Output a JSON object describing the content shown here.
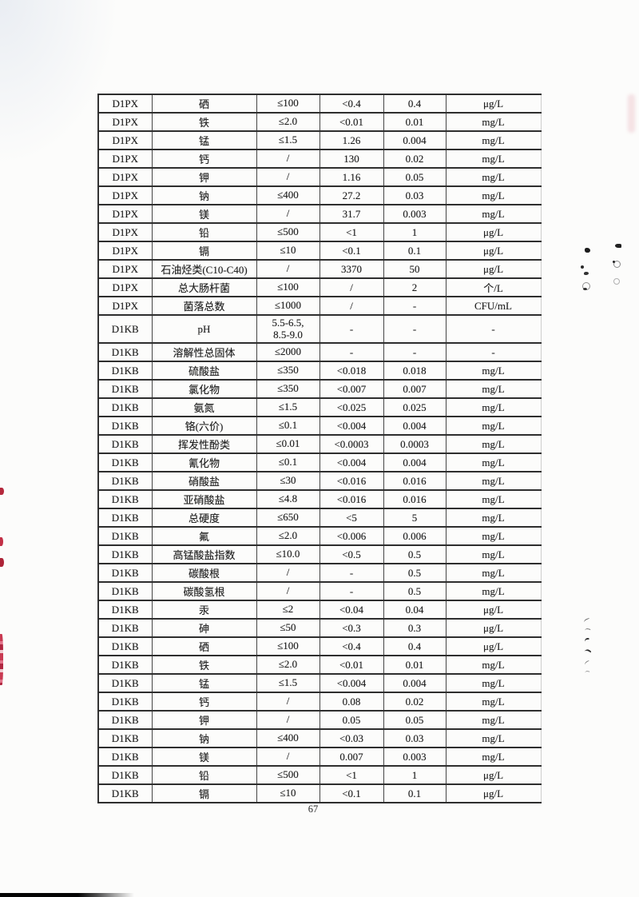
{
  "page": {
    "number": "67"
  },
  "colors": {
    "stamp_red": "#b5293d",
    "ink": "#1f1f1f",
    "line": "#2e2e2e"
  },
  "table": {
    "columns": [
      "sample_id",
      "parameter",
      "limit",
      "measured",
      "detection_limit",
      "unit"
    ],
    "rows": [
      {
        "sample_id": "D1PX",
        "parameter": "硒",
        "limit": "≤100",
        "measured": "<0.4",
        "detection_limit": "0.4",
        "unit": "μg/L"
      },
      {
        "sample_id": "D1PX",
        "parameter": "铁",
        "limit": "≤2.0",
        "measured": "<0.01",
        "detection_limit": "0.01",
        "unit": "mg/L"
      },
      {
        "sample_id": "D1PX",
        "parameter": "锰",
        "limit": "≤1.5",
        "measured": "1.26",
        "detection_limit": "0.004",
        "unit": "mg/L"
      },
      {
        "sample_id": "D1PX",
        "parameter": "钙",
        "limit": "/",
        "measured": "130",
        "detection_limit": "0.02",
        "unit": "mg/L"
      },
      {
        "sample_id": "D1PX",
        "parameter": "钾",
        "limit": "/",
        "measured": "1.16",
        "detection_limit": "0.05",
        "unit": "mg/L"
      },
      {
        "sample_id": "D1PX",
        "parameter": "钠",
        "limit": "≤400",
        "measured": "27.2",
        "detection_limit": "0.03",
        "unit": "mg/L"
      },
      {
        "sample_id": "D1PX",
        "parameter": "镁",
        "limit": "/",
        "measured": "31.7",
        "detection_limit": "0.003",
        "unit": "mg/L"
      },
      {
        "sample_id": "D1PX",
        "parameter": "铅",
        "limit": "≤500",
        "measured": "<1",
        "detection_limit": "1",
        "unit": "μg/L"
      },
      {
        "sample_id": "D1PX",
        "parameter": "镉",
        "limit": "≤10",
        "measured": "<0.1",
        "detection_limit": "0.1",
        "unit": "μg/L"
      },
      {
        "sample_id": "D1PX",
        "parameter": "石油烃类(C10-C40)",
        "limit": "/",
        "measured": "3370",
        "detection_limit": "50",
        "unit": "μg/L"
      },
      {
        "sample_id": "D1PX",
        "parameter": "总大肠杆菌",
        "limit": "≤100",
        "measured": "/",
        "detection_limit": "2",
        "unit": "个/L"
      },
      {
        "sample_id": "D1PX",
        "parameter": "菌落总数",
        "limit": "≤1000",
        "measured": "/",
        "detection_limit": "-",
        "unit": "CFU/mL"
      },
      {
        "sample_id": "D1KB",
        "parameter": "pH",
        "limit": "5.5-6.5,\n8.5-9.0",
        "measured": "-",
        "detection_limit": "-",
        "unit": "-"
      },
      {
        "sample_id": "D1KB",
        "parameter": "溶解性总固体",
        "limit": "≤2000",
        "measured": "-",
        "detection_limit": "-",
        "unit": "-"
      },
      {
        "sample_id": "D1KB",
        "parameter": "硫酸盐",
        "limit": "≤350",
        "measured": "<0.018",
        "detection_limit": "0.018",
        "unit": "mg/L"
      },
      {
        "sample_id": "D1KB",
        "parameter": "氯化物",
        "limit": "≤350",
        "measured": "<0.007",
        "detection_limit": "0.007",
        "unit": "mg/L"
      },
      {
        "sample_id": "D1KB",
        "parameter": "氨氮",
        "limit": "≤1.5",
        "measured": "<0.025",
        "detection_limit": "0.025",
        "unit": "mg/L"
      },
      {
        "sample_id": "D1KB",
        "parameter": "铬(六价)",
        "limit": "≤0.1",
        "measured": "<0.004",
        "detection_limit": "0.004",
        "unit": "mg/L"
      },
      {
        "sample_id": "D1KB",
        "parameter": "挥发性酚类",
        "limit": "≤0.01",
        "measured": "<0.0003",
        "detection_limit": "0.0003",
        "unit": "mg/L"
      },
      {
        "sample_id": "D1KB",
        "parameter": "氰化物",
        "limit": "≤0.1",
        "measured": "<0.004",
        "detection_limit": "0.004",
        "unit": "mg/L"
      },
      {
        "sample_id": "D1KB",
        "parameter": "硝酸盐",
        "limit": "≤30",
        "measured": "<0.016",
        "detection_limit": "0.016",
        "unit": "mg/L"
      },
      {
        "sample_id": "D1KB",
        "parameter": "亚硝酸盐",
        "limit": "≤4.8",
        "measured": "<0.016",
        "detection_limit": "0.016",
        "unit": "mg/L"
      },
      {
        "sample_id": "D1KB",
        "parameter": "总硬度",
        "limit": "≤650",
        "measured": "<5",
        "detection_limit": "5",
        "unit": "mg/L"
      },
      {
        "sample_id": "D1KB",
        "parameter": "氟",
        "limit": "≤2.0",
        "measured": "<0.006",
        "detection_limit": "0.006",
        "unit": "mg/L"
      },
      {
        "sample_id": "D1KB",
        "parameter": "高锰酸盐指数",
        "limit": "≤10.0",
        "measured": "<0.5",
        "detection_limit": "0.5",
        "unit": "mg/L"
      },
      {
        "sample_id": "D1KB",
        "parameter": "碳酸根",
        "limit": "/",
        "measured": "-",
        "detection_limit": "0.5",
        "unit": "mg/L"
      },
      {
        "sample_id": "D1KB",
        "parameter": "碳酸氢根",
        "limit": "/",
        "measured": "-",
        "detection_limit": "0.5",
        "unit": "mg/L"
      },
      {
        "sample_id": "D1KB",
        "parameter": "汞",
        "limit": "≤2",
        "measured": "<0.04",
        "detection_limit": "0.04",
        "unit": "μg/L"
      },
      {
        "sample_id": "D1KB",
        "parameter": "砷",
        "limit": "≤50",
        "measured": "<0.3",
        "detection_limit": "0.3",
        "unit": "μg/L"
      },
      {
        "sample_id": "D1KB",
        "parameter": "硒",
        "limit": "≤100",
        "measured": "<0.4",
        "detection_limit": "0.4",
        "unit": "μg/L"
      },
      {
        "sample_id": "D1KB",
        "parameter": "铁",
        "limit": "≤2.0",
        "measured": "<0.01",
        "detection_limit": "0.01",
        "unit": "mg/L"
      },
      {
        "sample_id": "D1KB",
        "parameter": "锰",
        "limit": "≤1.5",
        "measured": "<0.004",
        "detection_limit": "0.004",
        "unit": "mg/L"
      },
      {
        "sample_id": "D1KB",
        "parameter": "钙",
        "limit": "/",
        "measured": "0.08",
        "detection_limit": "0.02",
        "unit": "mg/L"
      },
      {
        "sample_id": "D1KB",
        "parameter": "钾",
        "limit": "/",
        "measured": "0.05",
        "detection_limit": "0.05",
        "unit": "mg/L"
      },
      {
        "sample_id": "D1KB",
        "parameter": "钠",
        "limit": "≤400",
        "measured": "<0.03",
        "detection_limit": "0.03",
        "unit": "mg/L"
      },
      {
        "sample_id": "D1KB",
        "parameter": "镁",
        "limit": "/",
        "measured": "0.007",
        "detection_limit": "0.003",
        "unit": "mg/L"
      },
      {
        "sample_id": "D1KB",
        "parameter": "铅",
        "limit": "≤500",
        "measured": "<1",
        "detection_limit": "1",
        "unit": "μg/L"
      },
      {
        "sample_id": "D1KB",
        "parameter": "镉",
        "limit": "≤10",
        "measured": "<0.1",
        "detection_limit": "0.1",
        "unit": "μg/L"
      }
    ]
  }
}
